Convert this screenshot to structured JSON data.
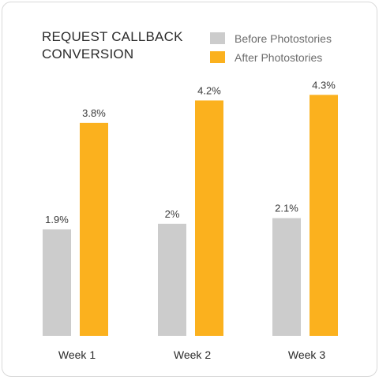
{
  "chart_data": {
    "type": "bar",
    "title_lines": [
      "REQUEST CALLBACK",
      "CONVERSION"
    ],
    "categories": [
      "Week 1",
      "Week 2",
      "Week 3"
    ],
    "series": [
      {
        "name": "Before Photostories",
        "values": [
          1.9,
          2.0,
          2.1
        ],
        "labels": [
          "1.9%",
          "2%",
          "2.1%"
        ],
        "color": "#cccccc"
      },
      {
        "name": "After Photostories",
        "values": [
          3.8,
          4.2,
          4.3
        ],
        "labels": [
          "3.8%",
          "4.2%",
          "4.3%"
        ],
        "color": "#fbb11e"
      }
    ],
    "unit": "%",
    "ylim": [
      0,
      4.6
    ],
    "legend_position": "top-right",
    "grid": false
  }
}
